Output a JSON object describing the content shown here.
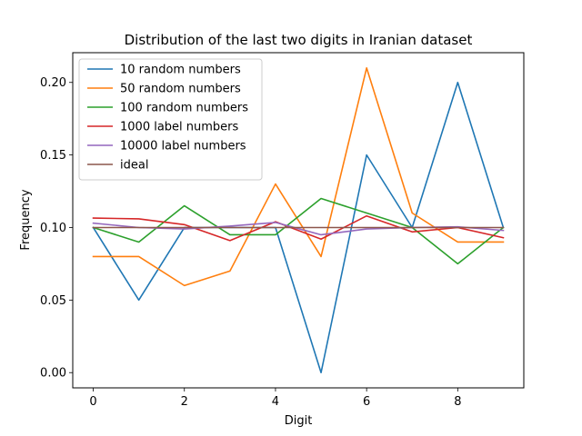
{
  "chart_data": {
    "type": "line",
    "title": "Distribution of the last two digits in Iranian dataset",
    "xlabel": "Digit",
    "ylabel": "Frequency",
    "x": [
      0,
      1,
      2,
      3,
      4,
      5,
      6,
      7,
      8,
      9
    ],
    "xlim": [
      -0.45,
      9.45
    ],
    "ylim": [
      -0.0105,
      0.2205
    ],
    "xticks": [
      0,
      2,
      4,
      6,
      8
    ],
    "xtick_labels": [
      "0",
      "2",
      "4",
      "6",
      "8"
    ],
    "yticks": [
      0.0,
      0.05,
      0.1,
      0.15,
      0.2
    ],
    "ytick_labels": [
      "0.00",
      "0.05",
      "0.10",
      "0.15",
      "0.20"
    ],
    "grid": false,
    "legend_position": "top-left",
    "series": [
      {
        "name": "10 random numbers",
        "color": "#1f77b4",
        "values": [
          0.1,
          0.05,
          0.1,
          0.1,
          0.1,
          0.0,
          0.15,
          0.1,
          0.2,
          0.1
        ]
      },
      {
        "name": "50 random numbers",
        "color": "#ff7f0e",
        "values": [
          0.08,
          0.08,
          0.06,
          0.07,
          0.13,
          0.08,
          0.21,
          0.11,
          0.09,
          0.09
        ]
      },
      {
        "name": "100 random numbers",
        "color": "#2ca02c",
        "values": [
          0.1,
          0.09,
          0.115,
          0.095,
          0.095,
          0.12,
          0.11,
          0.1,
          0.075,
          0.1
        ]
      },
      {
        "name": "1000 label numbers",
        "color": "#d62728",
        "values": [
          0.1065,
          0.106,
          0.102,
          0.091,
          0.104,
          0.092,
          0.108,
          0.097,
          0.1,
          0.093
        ]
      },
      {
        "name": "10000 label numbers",
        "color": "#9467bd",
        "values": [
          0.103,
          0.1,
          0.099,
          0.101,
          0.1035,
          0.095,
          0.099,
          0.1,
          0.1005,
          0.098
        ]
      },
      {
        "name": "ideal",
        "color": "#8c564b",
        "values": [
          0.1,
          0.1,
          0.1,
          0.1,
          0.1,
          0.1,
          0.1,
          0.1,
          0.1,
          0.1
        ]
      }
    ]
  }
}
